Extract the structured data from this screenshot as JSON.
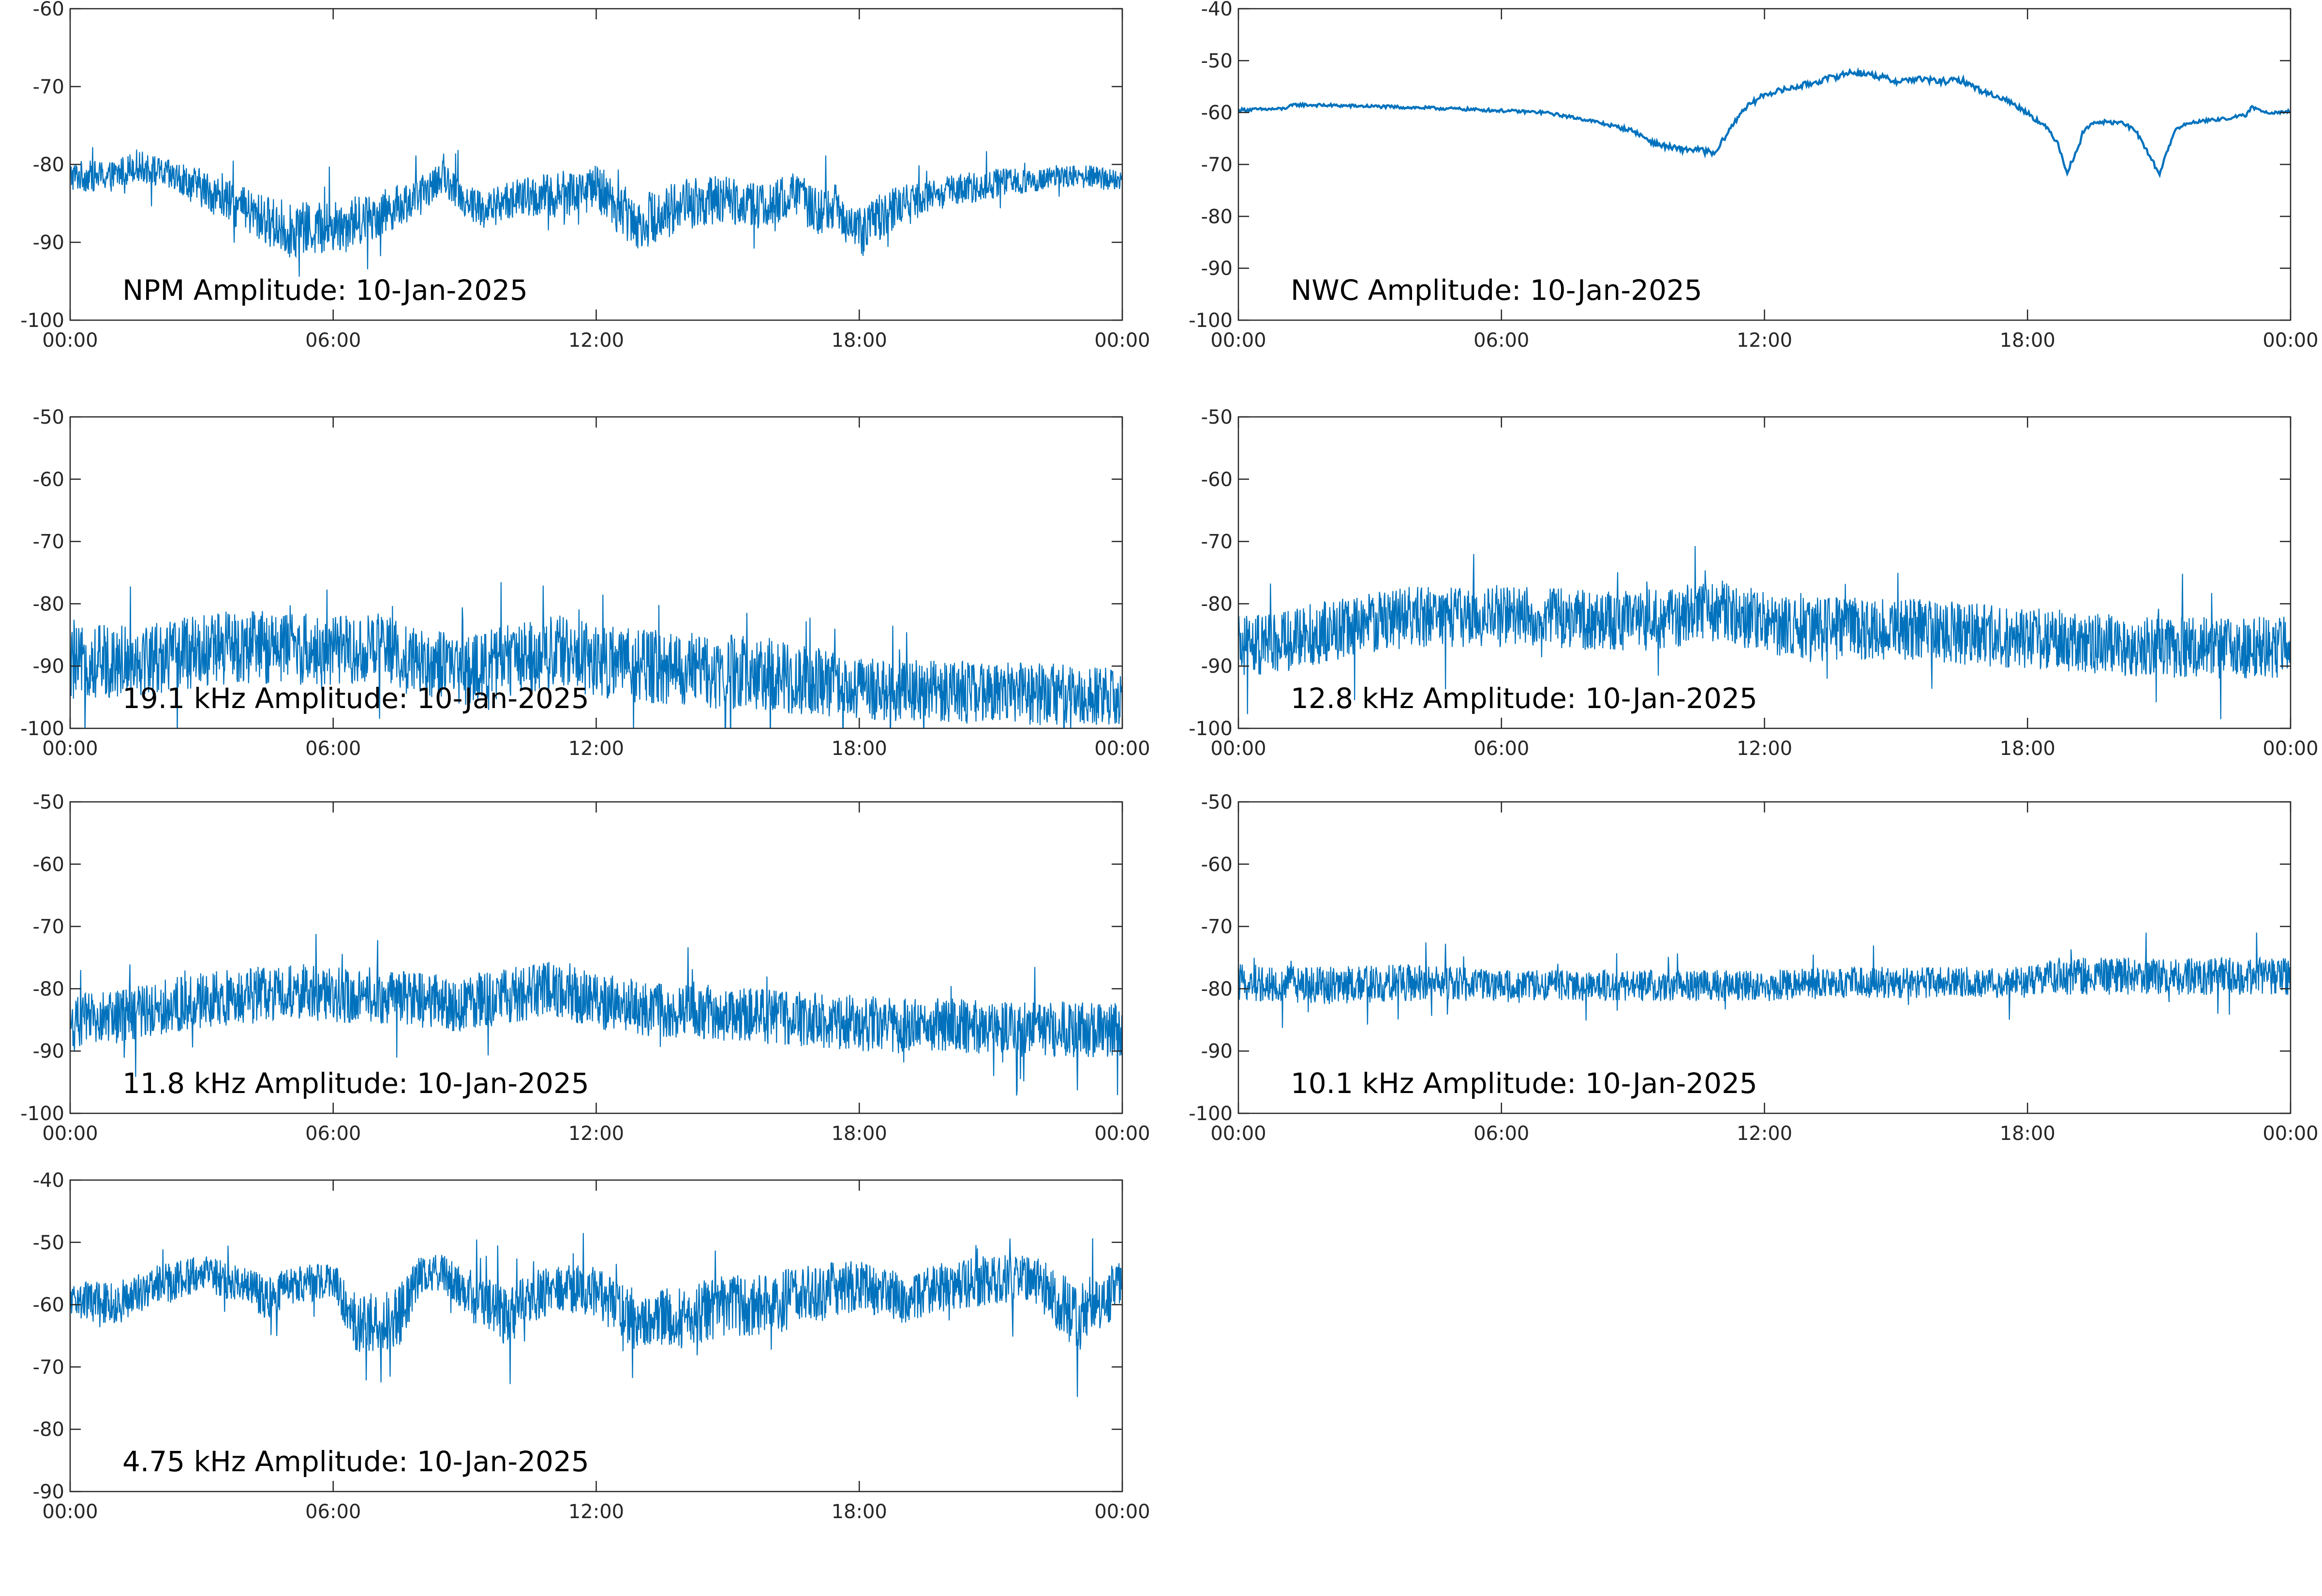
{
  "colors": {
    "line": "#0072BD",
    "axes": "#262626",
    "background": "#ffffff"
  },
  "chart_data": [
    {
      "type": "line",
      "title": "NPM Amplitude: 10-Jan-2025",
      "xlabel": "",
      "ylabel": "",
      "xlim": [
        "00:00",
        "00:00"
      ],
      "ylim": [
        -100,
        -60
      ],
      "xticks": [
        "00:00",
        "06:00",
        "12:00",
        "18:00",
        "00:00"
      ],
      "yticks": [
        "-60",
        "-70",
        "-80",
        "-90",
        "-100"
      ],
      "grid": false,
      "noisy": true,
      "x_hours": [
        0,
        1,
        1.5,
        2,
        3,
        4,
        5,
        6,
        7,
        8,
        8.5,
        9,
        9.5,
        10,
        11,
        12,
        12.5,
        13,
        14,
        15,
        16,
        16.5,
        17,
        17.5,
        18,
        18.5,
        19,
        20,
        21,
        22,
        22.5,
        23,
        24
      ],
      "center": [
        -81.5,
        -81.5,
        -80,
        -81,
        -83,
        -86,
        -88.5,
        -88,
        -86.5,
        -84,
        -81.5,
        -84.5,
        -86,
        -84.5,
        -84,
        -83,
        -85.5,
        -87.5,
        -85,
        -84.5,
        -85.5,
        -83.5,
        -86,
        -85.5,
        -89,
        -86.5,
        -85,
        -83.5,
        -82.5,
        -82,
        -81.5,
        -81.5,
        -82
      ],
      "spread": [
        2,
        2,
        2,
        2,
        2.5,
        3,
        3.5,
        3.5,
        3,
        2.5,
        2,
        2.5,
        2.5,
        2.5,
        3,
        3,
        3.5,
        3.5,
        3.5,
        3,
        3,
        3,
        3,
        3,
        3.5,
        3,
        2.5,
        2,
        2,
        1.5,
        1.5,
        1.5,
        1.5
      ]
    },
    {
      "type": "line",
      "title": "NWC Amplitude: 10-Jan-2025",
      "xlabel": "",
      "ylabel": "",
      "xlim": [
        "00:00",
        "00:00"
      ],
      "ylim": [
        -100,
        -40
      ],
      "xticks": [
        "00:00",
        "06:00",
        "12:00",
        "18:00",
        "00:00"
      ],
      "yticks": [
        "-40",
        "-50",
        "-60",
        "-70",
        "-80",
        "-90",
        "-100"
      ],
      "grid": false,
      "noisy": false,
      "x_hours": [
        0,
        1,
        1.3,
        3,
        5,
        7,
        8,
        9,
        9.5,
        10,
        10.5,
        10.9,
        11,
        11.5,
        12,
        13,
        14,
        14.5,
        15,
        15.5,
        16,
        16.5,
        17,
        17.5,
        18,
        18.5,
        18.7,
        18.9,
        19.1,
        19.3,
        19.6,
        20.2,
        20.5,
        20.8,
        21.0,
        21.2,
        21.4,
        21.8,
        22.5,
        23,
        23.1,
        23.5,
        24
      ],
      "center": [
        -59.5,
        -59.3,
        -58.5,
        -58.8,
        -59.3,
        -60,
        -61.5,
        -63.5,
        -66,
        -67,
        -67.2,
        -68,
        -66,
        -59.5,
        -56.5,
        -54.5,
        -52.2,
        -52.8,
        -54,
        -53.5,
        -54,
        -53.8,
        -56,
        -57.5,
        -60,
        -63.5,
        -66,
        -71.5,
        -68,
        -63,
        -61.8,
        -62,
        -64,
        -68.5,
        -72,
        -67,
        -63,
        -61.8,
        -61.2,
        -60.5,
        -59,
        -60,
        -59.8
      ],
      "spread": [
        0.3,
        0.3,
        0.3,
        0.3,
        0.3,
        0.3,
        0.3,
        0.4,
        0.5,
        0.6,
        0.6,
        0.6,
        0.5,
        0.5,
        0.5,
        0.6,
        0.6,
        0.6,
        0.6,
        0.6,
        0.6,
        0.6,
        0.5,
        0.5,
        0.5,
        0.5,
        0.5,
        0.6,
        0.5,
        0.5,
        0.4,
        0.4,
        0.4,
        0.5,
        0.5,
        0.5,
        0.4,
        0.3,
        0.3,
        0.3,
        0.3,
        0.3,
        0.3
      ]
    },
    {
      "type": "line",
      "title": "19.1 kHz Amplitude: 10-Jan-2025",
      "xlabel": "",
      "ylabel": "",
      "xlim": [
        "00:00",
        "00:00"
      ],
      "ylim": [
        -100,
        -50
      ],
      "xticks": [
        "00:00",
        "06:00",
        "12:00",
        "18:00",
        "00:00"
      ],
      "yticks": [
        "-50",
        "-60",
        "-70",
        "-80",
        "-90",
        "-100"
      ],
      "grid": false,
      "noisy": true,
      "x_hours": [
        0,
        1,
        2,
        3,
        4,
        5,
        6,
        7,
        8,
        9,
        10,
        11,
        12,
        13,
        14,
        15,
        16,
        17,
        18,
        19,
        20,
        21,
        22,
        23,
        24
      ],
      "center": [
        -90,
        -89,
        -88.5,
        -87.5,
        -87,
        -87,
        -87.5,
        -87,
        -89,
        -91,
        -89,
        -87.5,
        -89,
        -90,
        -90.5,
        -91,
        -91.5,
        -92.5,
        -93.5,
        -94,
        -94,
        -94,
        -94.5,
        -94.5,
        -95
      ],
      "spread": [
        6,
        6,
        6,
        6,
        6,
        6,
        5.5,
        5.5,
        5.5,
        5.5,
        6,
        6,
        6,
        6,
        6,
        6,
        6,
        5.5,
        5,
        5,
        5,
        5,
        5,
        5,
        5
      ]
    },
    {
      "type": "line",
      "title": "12.8 kHz Amplitude: 10-Jan-2025",
      "xlabel": "",
      "ylabel": "",
      "xlim": [
        "00:00",
        "00:00"
      ],
      "ylim": [
        -100,
        -50
      ],
      "xticks": [
        "00:00",
        "06:00",
        "12:00",
        "18:00",
        "00:00"
      ],
      "yticks": [
        "-50",
        "-60",
        "-70",
        "-80",
        "-90",
        "-100"
      ],
      "grid": false,
      "noisy": true,
      "x_hours": [
        0,
        1,
        2,
        3,
        4,
        5,
        6,
        7,
        8,
        9,
        10,
        11,
        12,
        13,
        14,
        15,
        16,
        17,
        18,
        19,
        20,
        21,
        22,
        23,
        24
      ],
      "center": [
        -87,
        -86,
        -84.5,
        -83,
        -82,
        -82,
        -82,
        -82,
        -82.5,
        -83,
        -82,
        -81,
        -83,
        -84,
        -84,
        -84,
        -84.5,
        -85,
        -85.5,
        -86,
        -86.5,
        -87,
        -87,
        -87,
        -87
      ],
      "spread": [
        5,
        5,
        5,
        5,
        5,
        5,
        5,
        5,
        5,
        5,
        5,
        5,
        5,
        5,
        5,
        5,
        5,
        5,
        5,
        5,
        5,
        5,
        5,
        5,
        5
      ]
    },
    {
      "type": "line",
      "title": "11.8 kHz Amplitude: 10-Jan-2025",
      "xlabel": "",
      "ylabel": "",
      "xlim": [
        "00:00",
        "00:00"
      ],
      "ylim": [
        -100,
        -50
      ],
      "xticks": [
        "00:00",
        "06:00",
        "12:00",
        "18:00",
        "00:00"
      ],
      "yticks": [
        "-50",
        "-60",
        "-70",
        "-80",
        "-90",
        "-100"
      ],
      "grid": false,
      "noisy": true,
      "x_hours": [
        0,
        1,
        2,
        3,
        4,
        5,
        6,
        7,
        8,
        9,
        10,
        11,
        12,
        13,
        14,
        15,
        16,
        17,
        18,
        19,
        20,
        21,
        22,
        23,
        24
      ],
      "center": [
        -85.5,
        -84.5,
        -83,
        -82,
        -81,
        -80.5,
        -81,
        -81,
        -82,
        -82.5,
        -81,
        -80,
        -82,
        -83,
        -83.5,
        -84,
        -84.5,
        -85,
        -85.5,
        -86,
        -86,
        -86.5,
        -86.5,
        -86.5,
        -86.5
      ],
      "spread": [
        4.5,
        4.5,
        4.5,
        4.5,
        4.5,
        4.5,
        4.5,
        4.5,
        4.5,
        4.5,
        4.5,
        4.5,
        4.5,
        4.5,
        4.5,
        4.5,
        4.5,
        4.5,
        4.5,
        4.5,
        4.5,
        4.5,
        4.5,
        4.5,
        4.5
      ]
    },
    {
      "type": "line",
      "title": "10.1 kHz Amplitude: 10-Jan-2025",
      "xlabel": "",
      "ylabel": "",
      "xlim": [
        "00:00",
        "00:00"
      ],
      "ylim": [
        -100,
        -50
      ],
      "xticks": [
        "00:00",
        "06:00",
        "12:00",
        "18:00",
        "00:00"
      ],
      "yticks": [
        "-50",
        "-60",
        "-70",
        "-80",
        "-90",
        "-100"
      ],
      "grid": false,
      "noisy": true,
      "x_hours": [
        0,
        2,
        4,
        6,
        8,
        10,
        12,
        14,
        16,
        18,
        18.5,
        20,
        22,
        24
      ],
      "center": [
        -79,
        -79.5,
        -79,
        -79.5,
        -79.5,
        -79.5,
        -79.5,
        -79,
        -79,
        -79,
        -78,
        -78,
        -78,
        -78
      ],
      "spread": [
        3,
        3,
        3,
        2.5,
        2.5,
        2.5,
        2.5,
        2.5,
        2.5,
        2.5,
        3,
        3,
        3,
        3
      ]
    },
    {
      "type": "line",
      "title": "4.75 kHz Amplitude: 10-Jan-2025",
      "xlabel": "",
      "ylabel": "",
      "xlim": [
        "00:00",
        "00:00"
      ],
      "ylim": [
        -90,
        -40
      ],
      "xticks": [
        "00:00",
        "06:00",
        "12:00",
        "18:00",
        "00:00"
      ],
      "yticks": [
        "-40",
        "-50",
        "-60",
        "-70",
        "-80",
        "-90"
      ],
      "grid": false,
      "noisy": true,
      "x_hours": [
        0,
        1,
        2,
        3,
        4,
        4.5,
        5,
        6,
        6.5,
        7,
        7.5,
        8,
        8.5,
        9,
        10,
        11,
        12,
        13,
        14,
        15,
        16,
        17,
        18,
        19,
        20,
        21,
        22,
        23,
        24
      ],
      "center": [
        -59,
        -60,
        -57,
        -55,
        -57,
        -59,
        -57,
        -56,
        -63,
        -63,
        -62,
        -55,
        -55,
        -58,
        -62,
        -57,
        -58,
        -63,
        -62,
        -60,
        -60,
        -58,
        -57,
        -59,
        -57,
        -56,
        -56,
        -62,
        -57
      ],
      "spread": [
        3,
        3.5,
        3.5,
        3,
        3,
        3.5,
        3,
        3,
        5,
        5,
        5,
        3,
        3,
        4,
        5,
        4,
        4,
        5,
        5,
        5,
        5,
        5,
        4,
        4,
        4,
        4,
        4,
        6,
        4
      ]
    }
  ]
}
